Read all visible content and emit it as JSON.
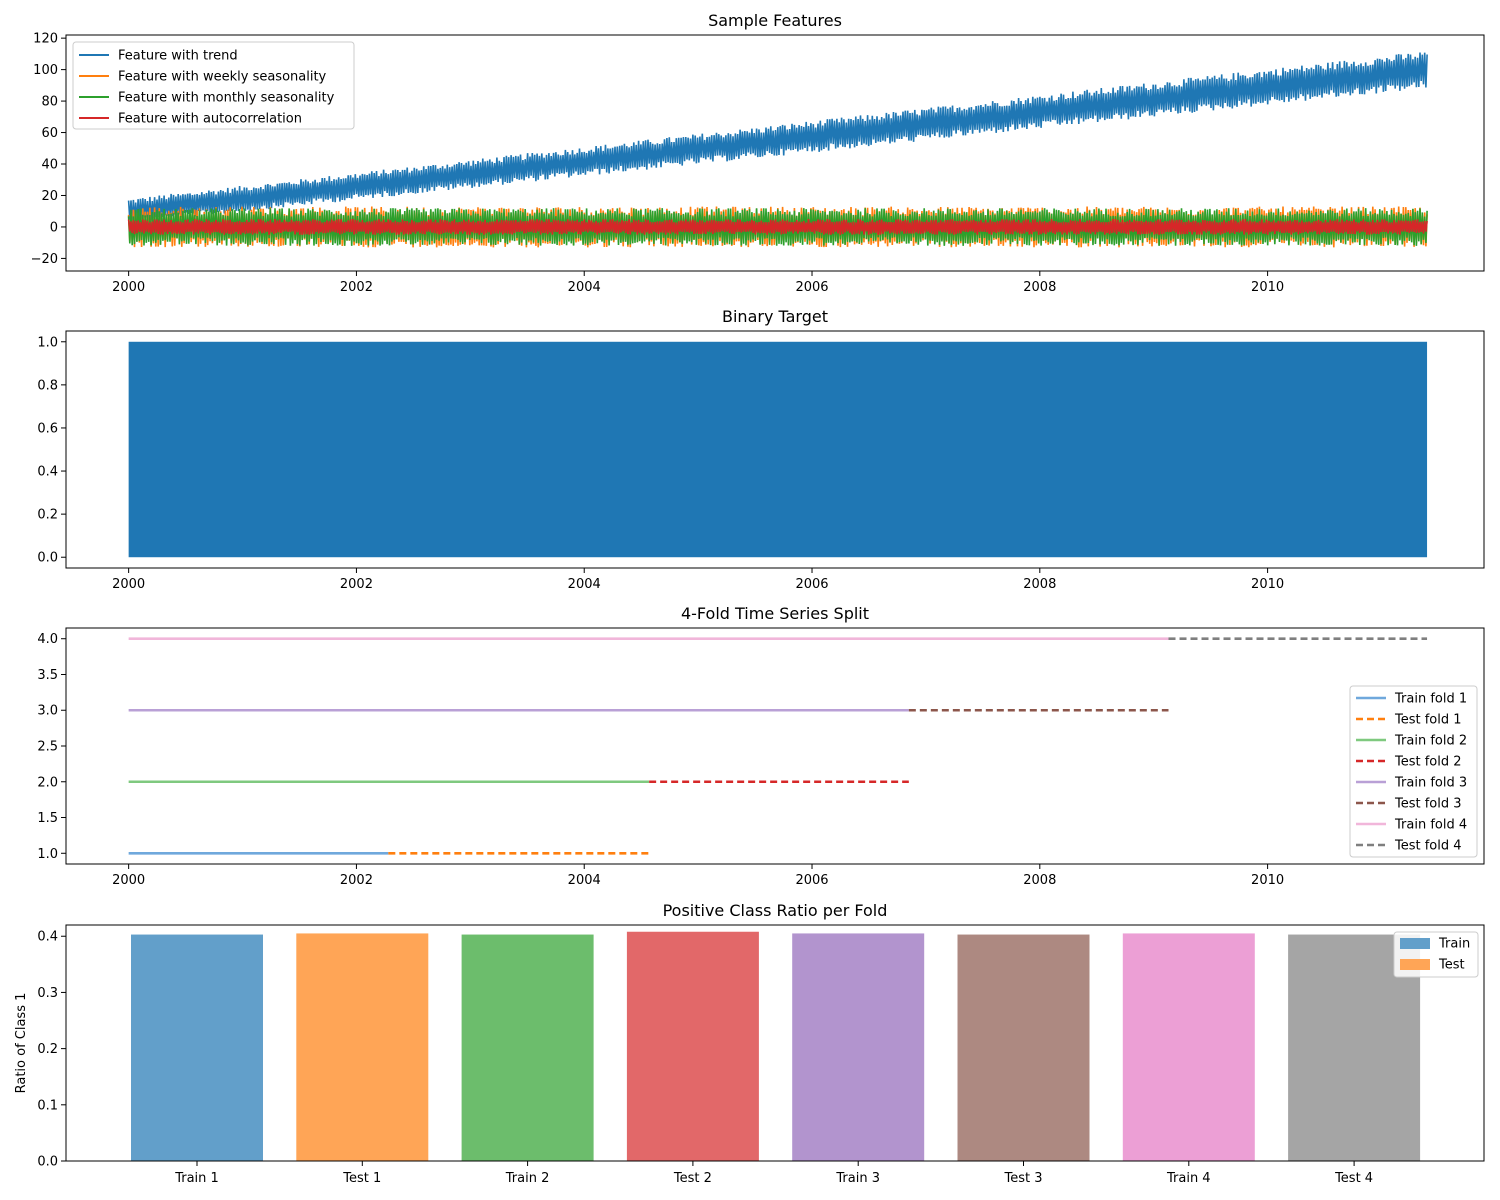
{
  "chart_data": [
    {
      "type": "line",
      "title": "Sample Features",
      "xlabel": "",
      "ylabel": "",
      "xlim": [
        1999.45,
        2011.9
      ],
      "ylim": [
        -28,
        122
      ],
      "x_range": [
        2000.0,
        2011.4
      ],
      "xticks": [
        2000,
        2002,
        2004,
        2006,
        2008,
        2010
      ],
      "yticks": [
        -20,
        0,
        20,
        40,
        60,
        80,
        100,
        120
      ],
      "legend_position": "upper-left",
      "series": [
        {
          "name": "Feature with trend",
          "color": "#1f77b4",
          "start_mean": 10,
          "end_mean": 100,
          "spread": 8
        },
        {
          "name": "Feature with weekly seasonality",
          "color": "#ff7f0e",
          "start_mean": 0,
          "end_mean": 0,
          "spread": 13
        },
        {
          "name": "Feature with monthly seasonality",
          "color": "#2ca02c",
          "start_mean": 0,
          "end_mean": 0,
          "spread": 12
        },
        {
          "name": "Feature with autocorrelation",
          "color": "#d62728",
          "start_mean": 0,
          "end_mean": 0,
          "spread": 5
        }
      ]
    },
    {
      "type": "line",
      "title": "Binary Target",
      "xlabel": "",
      "ylabel": "",
      "xlim": [
        1999.45,
        2011.9
      ],
      "ylim": [
        -0.05,
        1.05
      ],
      "x_range": [
        2000.0,
        2011.4
      ],
      "xticks": [
        2000,
        2002,
        2004,
        2006,
        2008,
        2010
      ],
      "yticks": [
        0.0,
        0.2,
        0.4,
        0.6,
        0.8,
        1.0
      ],
      "series": [
        {
          "name": "",
          "color": "#1f77b4",
          "values_min": 0,
          "values_max": 1
        }
      ]
    },
    {
      "type": "line",
      "title": "4-Fold Time Series Split",
      "xlabel": "",
      "ylabel": "",
      "xlim": [
        1999.45,
        2011.9
      ],
      "ylim": [
        0.85,
        4.15
      ],
      "xticks": [
        2000,
        2002,
        2004,
        2006,
        2008,
        2010
      ],
      "yticks": [
        1.0,
        1.5,
        2.0,
        2.5,
        3.0,
        3.5,
        4.0
      ],
      "legend_position": "right",
      "series": [
        {
          "name": "Train fold 1",
          "color": "#6fa8dc",
          "dash": false,
          "y": 1,
          "x": [
            2000.0,
            2002.28
          ]
        },
        {
          "name": "Test fold 1",
          "color": "#ff7f0e",
          "dash": true,
          "y": 1,
          "x": [
            2002.28,
            2004.57
          ]
        },
        {
          "name": "Train fold 2",
          "color": "#7fc97f",
          "dash": false,
          "y": 2,
          "x": [
            2000.0,
            2004.57
          ]
        },
        {
          "name": "Test fold 2",
          "color": "#d62728",
          "dash": true,
          "y": 2,
          "x": [
            2004.57,
            2006.85
          ]
        },
        {
          "name": "Train fold 3",
          "color": "#b9a0d6",
          "dash": false,
          "y": 3,
          "x": [
            2000.0,
            2006.85
          ]
        },
        {
          "name": "Test fold 3",
          "color": "#8c564b",
          "dash": true,
          "y": 3,
          "x": [
            2006.85,
            2009.13
          ]
        },
        {
          "name": "Train fold 4",
          "color": "#f1b6da",
          "dash": false,
          "y": 4,
          "x": [
            2000.0,
            2009.13
          ]
        },
        {
          "name": "Test fold 4",
          "color": "#7f7f7f",
          "dash": true,
          "y": 4,
          "x": [
            2009.13,
            2011.4
          ]
        }
      ]
    },
    {
      "type": "bar",
      "title": "Positive Class Ratio per Fold",
      "xlabel": "",
      "ylabel": "Ratio of Class 1",
      "ylim": [
        0,
        0.42
      ],
      "yticks": [
        0.0,
        0.1,
        0.2,
        0.3,
        0.4
      ],
      "legend_position": "upper-right",
      "legend": [
        {
          "name": "Train",
          "color": "#629fca"
        },
        {
          "name": "Test",
          "color": "#ffa556"
        }
      ],
      "categories": [
        "Train 1",
        "Test 1",
        "Train 2",
        "Test 2",
        "Train 3",
        "Test 3",
        "Train 4",
        "Test 4"
      ],
      "values": [
        0.403,
        0.405,
        0.403,
        0.408,
        0.405,
        0.403,
        0.405,
        0.403
      ],
      "colors": [
        "#629fca",
        "#ffa556",
        "#6cbd6c",
        "#e26869",
        "#b294ce",
        "#ad8981",
        "#ec9fd5",
        "#a5a5a5"
      ]
    }
  ]
}
